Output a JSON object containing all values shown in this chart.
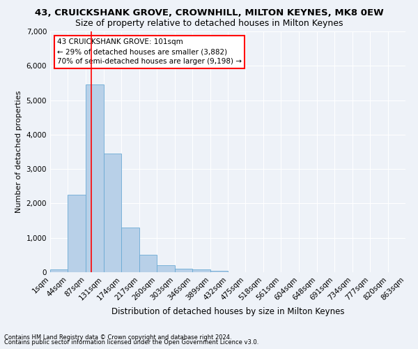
{
  "title": "43, CRUICKSHANK GROVE, CROWNHILL, MILTON KEYNES, MK8 0EW",
  "subtitle": "Size of property relative to detached houses in Milton Keynes",
  "xlabel": "Distribution of detached houses by size in Milton Keynes",
  "ylabel": "Number of detached properties",
  "footnote1": "Contains HM Land Registry data © Crown copyright and database right 2024.",
  "footnote2": "Contains public sector information licensed under the Open Government Licence v3.0.",
  "annotation_line1": "43 CRUICKSHANK GROVE: 101sqm",
  "annotation_line2": "← 29% of detached houses are smaller (3,882)",
  "annotation_line3": "70% of semi-detached houses are larger (9,198) →",
  "bar_color": "#b8d0e8",
  "bar_edge_color": "#6aaad4",
  "red_line_x": 101,
  "bin_edges": [
    1,
    44,
    87,
    131,
    174,
    217,
    260,
    303,
    346,
    389,
    432,
    475,
    518,
    561,
    604,
    648,
    691,
    734,
    777,
    820,
    863
  ],
  "bar_heights": [
    75,
    2250,
    5450,
    3450,
    1300,
    500,
    200,
    100,
    75,
    40,
    5,
    2,
    0,
    0,
    0,
    0,
    0,
    0,
    0,
    0
  ],
  "ylim": [
    0,
    7000
  ],
  "yticks": [
    0,
    1000,
    2000,
    3000,
    4000,
    5000,
    6000,
    7000
  ],
  "background_color": "#eef2f8",
  "grid_color": "#ffffff",
  "title_fontsize": 9.5,
  "subtitle_fontsize": 9,
  "ylabel_fontsize": 8,
  "xlabel_fontsize": 8.5,
  "tick_fontsize": 7.5,
  "annotation_fontsize": 7.5,
  "footnote_fontsize": 6
}
